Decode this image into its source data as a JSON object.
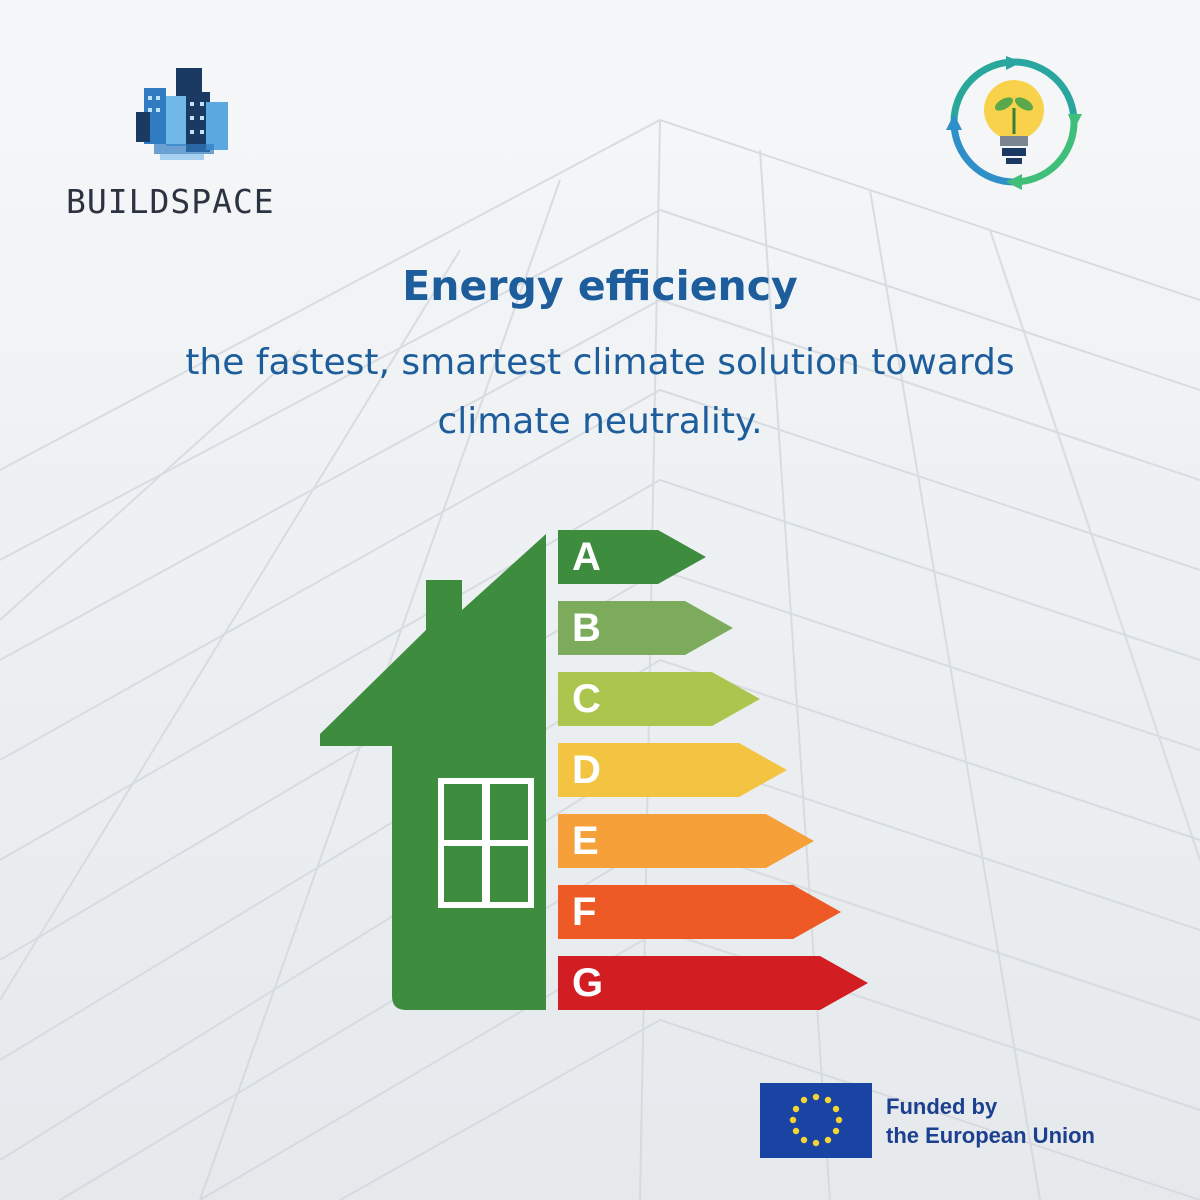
{
  "brand": {
    "logo_text": "BUILDSPACE",
    "logo_icon": "city-skyline-icon",
    "badge_icon": "lightbulb-plant-cycle-icon"
  },
  "headline": {
    "title": "Energy efficiency",
    "subtitle_lines": [
      "the fastest, smartest climate solution towards",
      "climate neutrality."
    ]
  },
  "energy_label": {
    "house_icon": "house-icon",
    "ratings": [
      {
        "letter": "A",
        "color": "#3e8c3d"
      },
      {
        "letter": "B",
        "color": "#7bab5b"
      },
      {
        "letter": "C",
        "color": "#abc54e"
      },
      {
        "letter": "D",
        "color": "#f2c442"
      },
      {
        "letter": "E",
        "color": "#f6a039"
      },
      {
        "letter": "F",
        "color": "#ee5a25"
      },
      {
        "letter": "G",
        "color": "#d21d23"
      }
    ]
  },
  "funding": {
    "flag_icon": "eu-flag-icon",
    "lines": [
      "Funded by",
      "the European Union"
    ]
  },
  "colors": {
    "title_blue": "#1d5d9b",
    "house_green": "#3e8c3d",
    "eu_blue": "#1a44a3"
  }
}
